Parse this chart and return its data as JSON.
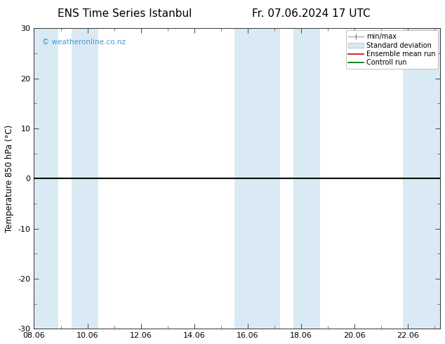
{
  "title_left": "ENS Time Series Istanbul",
  "title_right": "Fr. 07.06.2024 17 UTC",
  "ylabel": "Temperature 850 hPa (°C)",
  "xlim_labels": [
    "08.06",
    "10.06",
    "12.06",
    "14.06",
    "16.06",
    "18.06",
    "20.06",
    "22.06"
  ],
  "x_positions": [
    0,
    2,
    4,
    6,
    8,
    10,
    12,
    14
  ],
  "xlim": [
    0,
    15.2
  ],
  "ylim": [
    -30,
    30
  ],
  "yticks": [
    -30,
    -20,
    -10,
    0,
    10,
    20,
    30
  ],
  "background_color": "#ffffff",
  "plot_bg_color": "#ffffff",
  "shaded_bands": [
    [
      0.0,
      0.9
    ],
    [
      1.4,
      2.4
    ],
    [
      7.5,
      9.2
    ],
    [
      9.7,
      10.7
    ],
    [
      13.8,
      15.2
    ]
  ],
  "shade_color": "#daeaf5",
  "zero_line_color": "#000000",
  "green_line_color": "#006600",
  "red_line_color": "#cc0000",
  "watermark_text": "© weatheronline.co.nz",
  "watermark_color": "#4499cc",
  "legend_labels": [
    "min/max",
    "Standard deviation",
    "Ensemble mean run",
    "Controll run"
  ],
  "title_fontsize": 11,
  "tick_fontsize": 8,
  "ylabel_fontsize": 8.5
}
